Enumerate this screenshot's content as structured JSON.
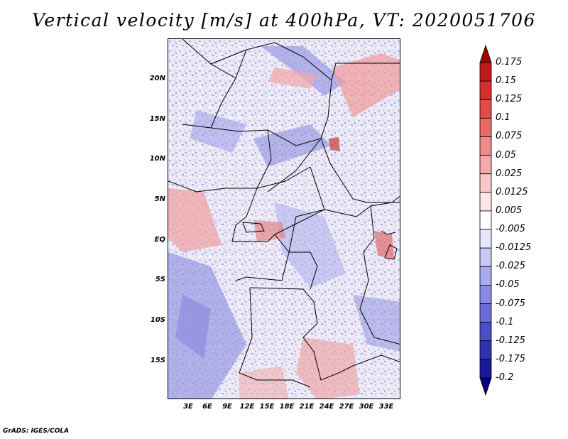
{
  "title": "Vertical velocity [m/s] at 400hPa, VT: 2020051706",
  "footer": "GrADS: IGES/COLA",
  "lat_labels": [
    "20N",
    "15N",
    "10N",
    "5N",
    "EQ",
    "5S",
    "10S",
    "15S"
  ],
  "lon_labels": [
    "3E",
    "6E",
    "9E",
    "12E",
    "15E",
    "18E",
    "21E",
    "24E",
    "27E",
    "30E",
    "33E"
  ],
  "colorbar": {
    "labels": [
      "0.175",
      "0.15",
      "0.125",
      "0.1",
      "0.075",
      "0.05",
      "0.025",
      "0.0125",
      "0.005",
      "-0.005",
      "-0.0125",
      "-0.025",
      "-0.05",
      "-0.075",
      "-0.1",
      "-0.125",
      "-0.175",
      "-0.2"
    ],
    "colors": [
      "#a00000",
      "#bd1a1a",
      "#d43030",
      "#e24c4c",
      "#ea6a6a",
      "#ef8a8a",
      "#f4aaaa",
      "#f8c8c8",
      "#fce6e6",
      "#ffffff",
      "#e6e6fa",
      "#c8c8f4",
      "#aaaaf0",
      "#8a8ae6",
      "#6a6ad8",
      "#4c4cc8",
      "#3030b0",
      "#1a1a98",
      "#000080"
    ]
  }
}
